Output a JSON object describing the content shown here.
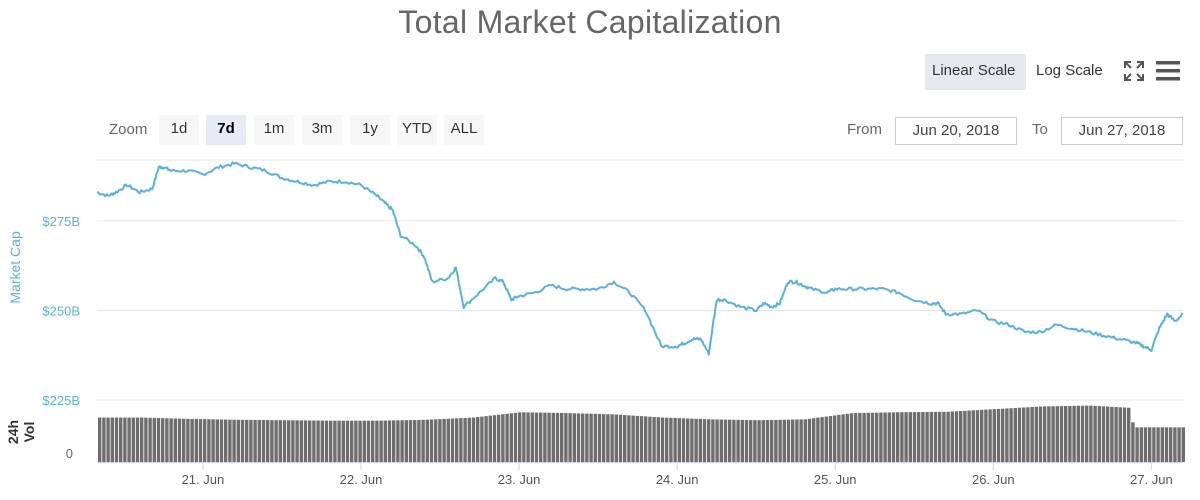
{
  "title": "Total Market Capitalization",
  "scale_toggle": {
    "linear": "Linear Scale",
    "log": "Log Scale",
    "active": "linear"
  },
  "icons": {
    "fullscreen": "fullscreen-icon",
    "menu": "hamburger-menu-icon"
  },
  "range_selector": {
    "zoom_label": "Zoom",
    "buttons": [
      "1d",
      "7d",
      "1m",
      "3m",
      "1y",
      "YTD",
      "ALL"
    ],
    "active": "7d",
    "from_label": "From",
    "from_value": "Jun 20, 2018",
    "to_label": "To",
    "to_value": "Jun 27, 2018"
  },
  "colors": {
    "line": "#5bb0dd",
    "volume": "#6e6e6e",
    "accent_axis": "#5bb0dd",
    "grid": "#e6e6e6"
  },
  "chart_data": [
    {
      "type": "line",
      "ylabel": "Market Cap",
      "ylim": [
        225,
        292
      ],
      "yticks": [
        225,
        250,
        275
      ],
      "ytick_labels": [
        "$225B",
        "$250B",
        "$275B"
      ],
      "grid": true,
      "xticks": [
        21,
        22,
        23,
        24,
        25,
        26,
        27
      ],
      "xtick_labels": [
        "21. Jun",
        "22. Jun",
        "23. Jun",
        "24. Jun",
        "25. Jun",
        "26. Jun",
        "27. Jun"
      ],
      "xlim": [
        20.33,
        27.2
      ],
      "series": [
        {
          "x": [
            20.33,
            20.4,
            20.45,
            20.52,
            20.6,
            20.68,
            20.72,
            20.75,
            20.8,
            20.9,
            21.0,
            21.1,
            21.2,
            21.3,
            21.4,
            21.5,
            21.6,
            21.7,
            21.8,
            21.9,
            22.0,
            22.1,
            22.15,
            22.2,
            22.25,
            22.35,
            22.4,
            22.45,
            22.55,
            22.6,
            22.65,
            22.75,
            22.85,
            22.9,
            22.95,
            23.0,
            23.1,
            23.2,
            23.3,
            23.4,
            23.5,
            23.6,
            23.7,
            23.8,
            23.9,
            24.0,
            24.05,
            24.1,
            24.15,
            24.2,
            24.25,
            24.3,
            24.4,
            24.5,
            24.55,
            24.6,
            24.65,
            24.7,
            24.75,
            24.8,
            24.85,
            24.95,
            25.0,
            25.1,
            25.2,
            25.3,
            25.4,
            25.5,
            25.6,
            25.65,
            25.7,
            25.8,
            25.9,
            26.0,
            26.1,
            26.2,
            26.3,
            26.4,
            26.5,
            26.6,
            26.7,
            26.8,
            26.9,
            26.95,
            27.0,
            27.05,
            27.1,
            27.15,
            27.2
          ],
          "y": [
            283,
            282,
            283,
            285,
            283,
            284,
            290,
            290,
            289,
            289,
            288,
            290,
            291,
            290,
            289,
            287,
            286,
            285,
            286,
            286,
            285,
            282,
            280,
            278,
            271,
            268,
            265,
            258,
            259,
            262,
            251,
            255,
            259,
            258,
            253,
            254,
            255,
            257,
            256,
            256,
            256,
            258,
            255,
            250,
            240,
            240,
            241,
            242,
            242,
            238,
            253,
            253,
            251,
            250,
            252,
            251,
            252,
            258,
            258,
            257,
            256,
            255,
            256,
            256,
            256,
            256,
            255,
            253,
            252,
            252,
            249,
            249,
            250,
            247,
            246,
            244,
            244,
            246,
            245,
            244,
            243,
            242,
            241,
            240,
            239,
            245,
            249,
            247,
            249
          ]
        }
      ]
    },
    {
      "type": "bar",
      "ylabel": "24h Vol",
      "yticks": [
        0
      ],
      "ytick_labels": [
        "0"
      ],
      "x": [
        20.33,
        20.6,
        20.9,
        21.2,
        21.5,
        21.8,
        22.1,
        22.4,
        22.7,
        23.0,
        23.3,
        23.6,
        23.9,
        24.2,
        24.5,
        24.8,
        25.1,
        25.4,
        25.7,
        26.0,
        26.3,
        26.6,
        26.85,
        26.88,
        27.2
      ],
      "values": [
        100,
        100,
        97,
        95,
        94,
        93,
        93,
        95,
        100,
        112,
        110,
        107,
        100,
        96,
        94,
        96,
        110,
        112,
        113,
        119,
        125,
        127,
        122,
        78,
        78
      ]
    }
  ]
}
